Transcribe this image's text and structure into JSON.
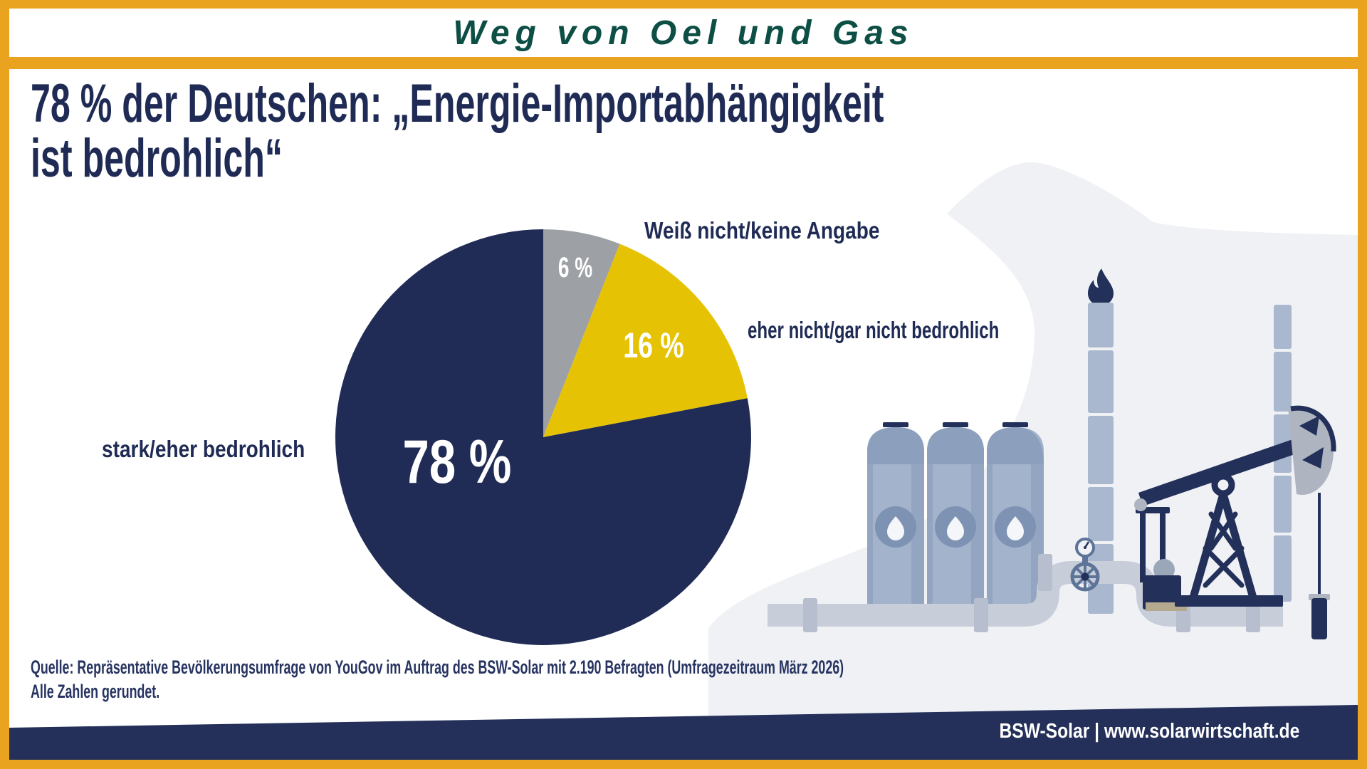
{
  "palette": {
    "frame_orange": "#E9A31F",
    "navy": "#1F2B55",
    "pie_navy": "#202C56",
    "pie_yellow": "#E5C304",
    "pie_gray": "#9DA0A4",
    "title_teal": "#0D4F45",
    "blob_gray": "#EFF1F5",
    "white": "#FFFFFF"
  },
  "top_banner": {
    "title": "Weg von Oel und Gas"
  },
  "headline": {
    "line1": "78 % der Deutschen: „Energie-Importabhängigkeit",
    "line2": "ist bedrohlich“"
  },
  "chart_data": {
    "type": "pie",
    "title": "78 % der Deutschen: „Energie-Importabhängigkeit ist bedrohlich“",
    "start_angle_deg": 0,
    "direction": "clockwise",
    "legend_position": "around-pie",
    "slices": [
      {
        "label": "Weiß nicht/keine Angabe",
        "value": 6,
        "display": "6 %",
        "color": "#9DA0A4"
      },
      {
        "label": "eher nicht/gar nicht bedrohlich",
        "value": 16,
        "display": "16 %",
        "color": "#E5C304"
      },
      {
        "label": "stark/eher bedrohlich",
        "value": 78,
        "display": "78 %",
        "color": "#202C56"
      }
    ]
  },
  "source": {
    "line1": "Quelle: Repräsentative Bevölkerungsumfrage von YouGov im Auftrag des BSW-Solar mit 2.190 Befragten (Umfragezeitraum März 2026)",
    "line2": "Alle Zahlen gerundet."
  },
  "footer": {
    "text": "BSW-Solar | www.solarwirtschaft.de"
  }
}
